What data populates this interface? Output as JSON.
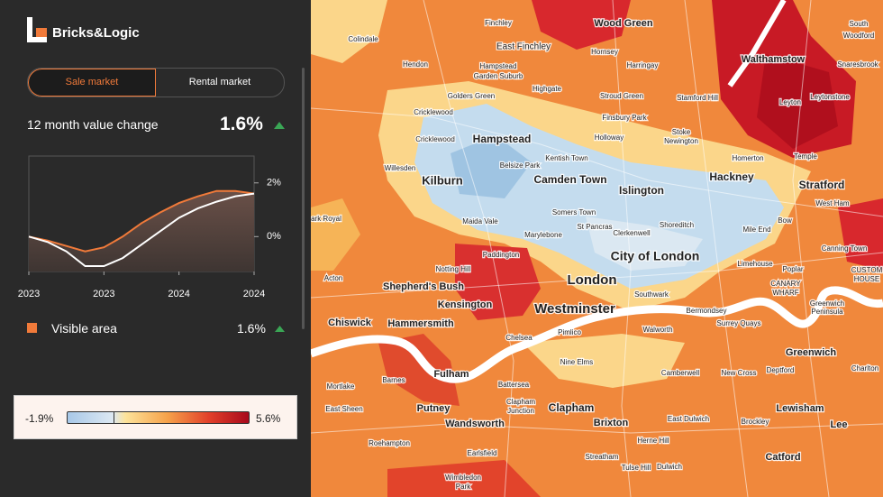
{
  "logo": "Bricks&Logic",
  "tabs": [
    "Sale market",
    "Rental market"
  ],
  "metric": {
    "label": "12 month value change",
    "value": "1.6%"
  },
  "chart_data": {
    "type": "line",
    "categories": [
      "2023",
      null,
      null,
      null,
      "2023",
      null,
      null,
      null,
      "2024",
      null,
      null,
      null,
      "2024"
    ],
    "ylim": [
      -1.3,
      3
    ],
    "yticks": [
      {
        "value": 0,
        "label": "0%"
      },
      {
        "value": 2,
        "label": "2%"
      }
    ],
    "series": [
      {
        "color": "#f07a3a",
        "values": [
          0,
          -0.15,
          -0.35,
          -0.55,
          -0.4,
          0,
          0.5,
          0.9,
          1.25,
          1.5,
          1.7,
          1.7,
          1.6
        ]
      },
      {
        "color": "#ffffff",
        "values": [
          0,
          -0.2,
          -0.55,
          -1.1,
          -1.1,
          -0.8,
          -0.3,
          0.2,
          0.7,
          1.05,
          1.3,
          1.5,
          1.6
        ]
      }
    ]
  },
  "legend": {
    "label": "Visible area",
    "value": "1.6%"
  },
  "color_scale": {
    "min": {
      "value": -1.9,
      "label": "-1.9%"
    },
    "max": {
      "value": 5.6,
      "label": "5.6%"
    }
  },
  "map": {
    "places": [
      "Finchley",
      "Wood Green",
      "Colindale",
      "East Finchley",
      "Hornsey",
      "Walthamstow",
      "South",
      "Woodford",
      "Hendon",
      "Hampstead",
      "Garden Suburb",
      "Harringay",
      "Snaresbrook",
      "Golders Green",
      "Highgate",
      "Stroud Green",
      "Stamford Hill",
      "Leytonstone",
      "Leyton",
      "Cricklewood",
      "Finsbury Park",
      "Hampstead",
      "Stoke",
      "Newington",
      "Holloway",
      "Cricklewood",
      "Kentish Town",
      "Homerton",
      "Temple",
      "Willesden",
      "Belsize Park",
      "Kilburn",
      "Camden Town",
      "Hackney",
      "Stratford",
      "Islington",
      "West Ham",
      "Somers Town",
      "Shoreditch",
      "Bow",
      "Maida Vale",
      "St Pancras",
      "Clerkenwell",
      "Marylebone",
      "Mile End",
      "ark Royal",
      "City of London",
      "Canning Town",
      "Notting Hill",
      "Paddington",
      "Limehouse",
      "Poplar",
      "CUSTOM",
      "HOUSE",
      "Acton",
      "Shepherd's Bush",
      "London",
      "CANARY",
      "WHARF",
      "Kensington",
      "Southwark",
      "Westminster",
      "Bermondsey",
      "Hammersmith",
      "Chiswick",
      "Surrey Quays",
      "Greenwich",
      "Peninsula",
      "Chelsea",
      "Pimlico",
      "Walworth",
      "Greenwich",
      "Fulham",
      "Nine Elms",
      "Mortlake",
      "Barnes",
      "Battersea",
      "Camberwell",
      "New Cross",
      "Deptford",
      "Charlton",
      "Clapham",
      "Junction",
      "Clapham",
      "Putney",
      "East Sheen",
      "Brixton",
      "East Dulwich",
      "Lewisham",
      "Brockley",
      "Lee",
      "Wandsworth",
      "Roehampton",
      "Herne Hill",
      "Earlsfield",
      "Streatham",
      "Catford",
      "Tulse Hill",
      "Dulwich",
      "Wimbledon",
      "Park"
    ]
  }
}
